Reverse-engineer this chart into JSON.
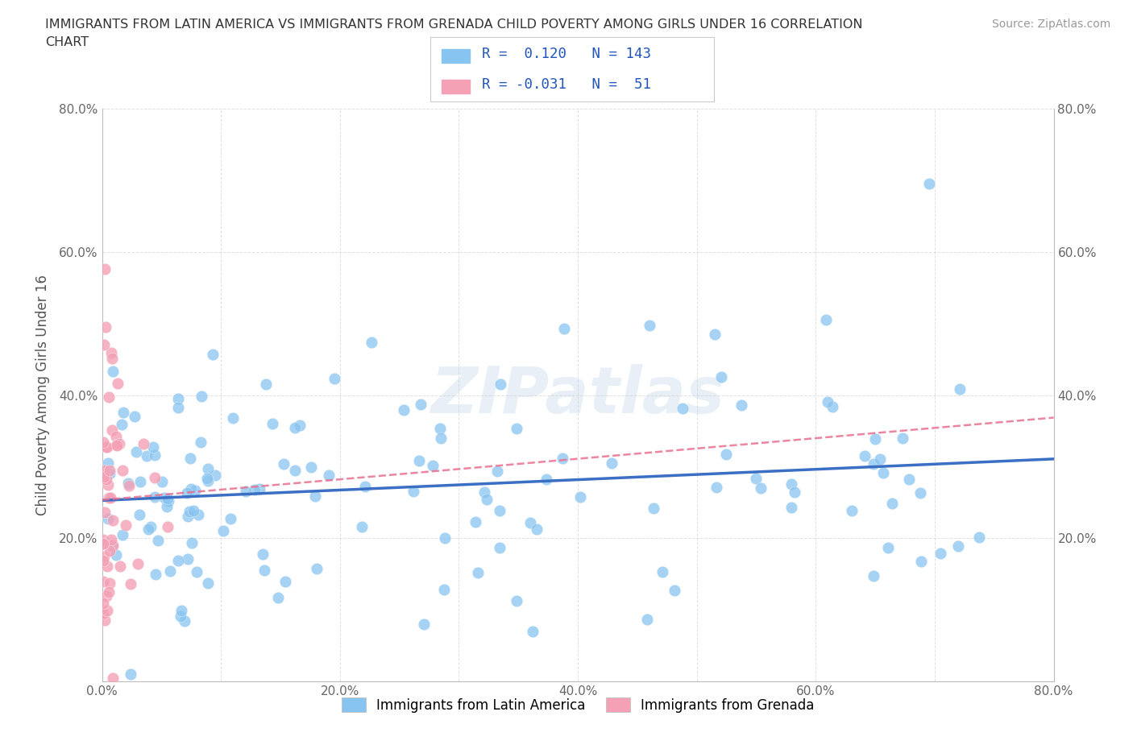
{
  "title_line1": "IMMIGRANTS FROM LATIN AMERICA VS IMMIGRANTS FROM GRENADA CHILD POVERTY AMONG GIRLS UNDER 16 CORRELATION",
  "title_line2": "CHART",
  "source": "Source: ZipAtlas.com",
  "ylabel": "Child Poverty Among Girls Under 16",
  "xlim": [
    0.0,
    0.8
  ],
  "ylim": [
    0.0,
    0.8
  ],
  "R_latin": 0.12,
  "N_latin": 143,
  "R_grenada": -0.031,
  "N_grenada": 51,
  "color_latin": "#88C4F0",
  "color_grenada": "#F4A0B5",
  "line_color_latin": "#3A6FC4",
  "line_color_grenada": "#E87090",
  "watermark": "ZIPatlas",
  "legend_labels": [
    "Immigrants from Latin America",
    "Immigrants from Grenada"
  ],
  "grid_color": "#CCCCCC",
  "background_color": "#FFFFFF"
}
